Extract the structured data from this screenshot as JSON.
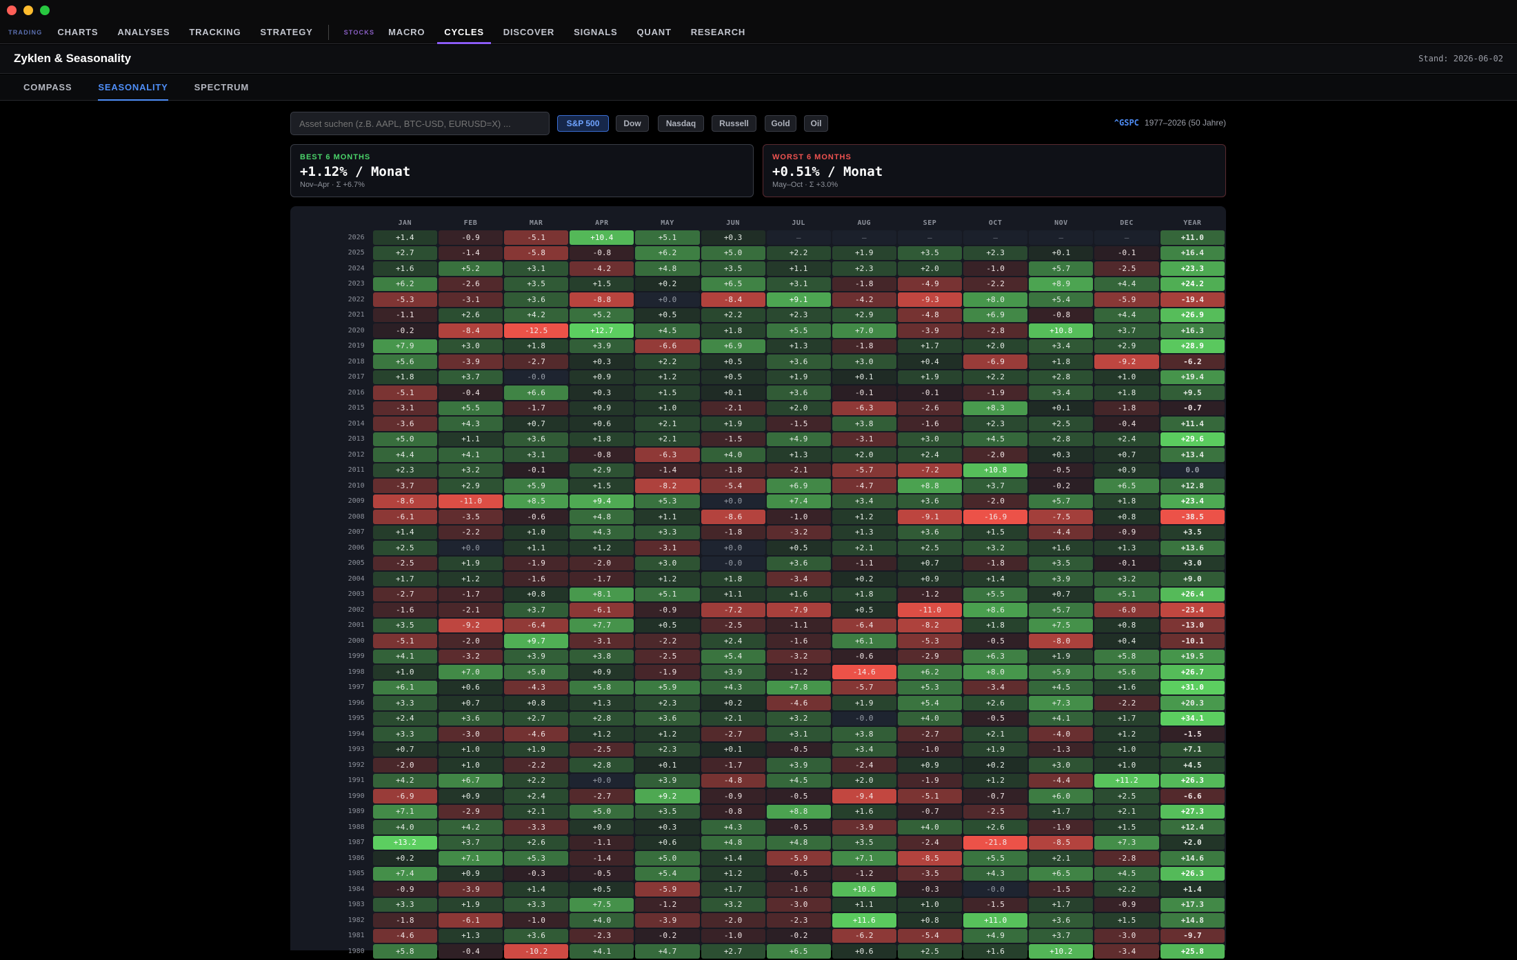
{
  "window": {
    "title": "Zyklen & Seasonality"
  },
  "nav": {
    "group_trading": "TRADING",
    "trading_items": [
      "CHARTS",
      "ANALYSES",
      "TRACKING",
      "STRATEGY"
    ],
    "group_stocks": "STOCKS",
    "stocks_items": [
      "MACRO",
      "CYCLES",
      "DISCOVER",
      "SIGNALS",
      "QUANT",
      "RESEARCH"
    ],
    "active": "CYCLES"
  },
  "header": {
    "title": "Zyklen & Seasonality",
    "stand": "Stand: 2026-06-02"
  },
  "subtabs": {
    "items": [
      "COMPASS",
      "SEASONALITY",
      "SPECTRUM"
    ],
    "active": "SEASONALITY"
  },
  "search": {
    "placeholder": "Asset suchen (z.B. AAPL, BTC-USD, EURUSD=X) ..."
  },
  "chips": {
    "items": [
      "S&P 500",
      "Dow",
      "Nasdaq",
      "Russell",
      "Gold",
      "Oil"
    ],
    "active": "S&P 500"
  },
  "ticker": {
    "symbol": "^GSPC",
    "range": "1977–2026 (50 Jahre)"
  },
  "best": {
    "label": "BEST 6 MONTHS",
    "value": "+1.12% / Monat",
    "sub": "Nov–Apr · Σ +6.7%"
  },
  "worst": {
    "label": "WORST 6 MONTHS",
    "value": "+0.51% / Monat",
    "sub": "May–Oct · Σ +3.0%"
  },
  "colors": {
    "positive": "#4caf50",
    "negative": "#e53935",
    "neutral": "#1e2430",
    "accent": "#4f8ef7",
    "nav_active": "#8b5cf6"
  },
  "table": {
    "columns": [
      "JAN",
      "FEB",
      "MAR",
      "APR",
      "MAY",
      "JUN",
      "JUL",
      "AUG",
      "SEP",
      "OCT",
      "NOV",
      "DEC",
      "YEAR"
    ],
    "rows": [
      {
        "year": "2026",
        "v": [
          "+1.4",
          "-0.9",
          "-5.1",
          "+10.4",
          "+5.1",
          "+0.3",
          "—",
          "—",
          "—",
          "—",
          "—",
          "—",
          "+11.0"
        ]
      },
      {
        "year": "2025",
        "v": [
          "+2.7",
          "-1.4",
          "-5.8",
          "-0.8",
          "+6.2",
          "+5.0",
          "+2.2",
          "+1.9",
          "+3.5",
          "+2.3",
          "+0.1",
          "-0.1",
          "+16.4"
        ]
      },
      {
        "year": "2024",
        "v": [
          "+1.6",
          "+5.2",
          "+3.1",
          "-4.2",
          "+4.8",
          "+3.5",
          "+1.1",
          "+2.3",
          "+2.0",
          "-1.0",
          "+5.7",
          "-2.5",
          "+23.3"
        ]
      },
      {
        "year": "2023",
        "v": [
          "+6.2",
          "-2.6",
          "+3.5",
          "+1.5",
          "+0.2",
          "+6.5",
          "+3.1",
          "-1.8",
          "-4.9",
          "-2.2",
          "+8.9",
          "+4.4",
          "+24.2"
        ]
      },
      {
        "year": "2022",
        "v": [
          "-5.3",
          "-3.1",
          "+3.6",
          "-8.8",
          "+0.0",
          "-8.4",
          "+9.1",
          "-4.2",
          "-9.3",
          "+8.0",
          "+5.4",
          "-5.9",
          "-19.4"
        ]
      },
      {
        "year": "2021",
        "v": [
          "-1.1",
          "+2.6",
          "+4.2",
          "+5.2",
          "+0.5",
          "+2.2",
          "+2.3",
          "+2.9",
          "-4.8",
          "+6.9",
          "-0.8",
          "+4.4",
          "+26.9"
        ]
      },
      {
        "year": "2020",
        "v": [
          "-0.2",
          "-8.4",
          "-12.5",
          "+12.7",
          "+4.5",
          "+1.8",
          "+5.5",
          "+7.0",
          "-3.9",
          "-2.8",
          "+10.8",
          "+3.7",
          "+16.3"
        ]
      },
      {
        "year": "2019",
        "v": [
          "+7.9",
          "+3.0",
          "+1.8",
          "+3.9",
          "-6.6",
          "+6.9",
          "+1.3",
          "-1.8",
          "+1.7",
          "+2.0",
          "+3.4",
          "+2.9",
          "+28.9"
        ]
      },
      {
        "year": "2018",
        "v": [
          "+5.6",
          "-3.9",
          "-2.7",
          "+0.3",
          "+2.2",
          "+0.5",
          "+3.6",
          "+3.0",
          "+0.4",
          "-6.9",
          "+1.8",
          "-9.2",
          "-6.2"
        ]
      },
      {
        "year": "2017",
        "v": [
          "+1.8",
          "+3.7",
          "-0.0",
          "+0.9",
          "+1.2",
          "+0.5",
          "+1.9",
          "+0.1",
          "+1.9",
          "+2.2",
          "+2.8",
          "+1.0",
          "+19.4"
        ]
      },
      {
        "year": "2016",
        "v": [
          "-5.1",
          "-0.4",
          "+6.6",
          "+0.3",
          "+1.5",
          "+0.1",
          "+3.6",
          "-0.1",
          "-0.1",
          "-1.9",
          "+3.4",
          "+1.8",
          "+9.5"
        ]
      },
      {
        "year": "2015",
        "v": [
          "-3.1",
          "+5.5",
          "-1.7",
          "+0.9",
          "+1.0",
          "-2.1",
          "+2.0",
          "-6.3",
          "-2.6",
          "+8.3",
          "+0.1",
          "-1.8",
          "-0.7"
        ]
      },
      {
        "year": "2014",
        "v": [
          "-3.6",
          "+4.3",
          "+0.7",
          "+0.6",
          "+2.1",
          "+1.9",
          "-1.5",
          "+3.8",
          "-1.6",
          "+2.3",
          "+2.5",
          "-0.4",
          "+11.4"
        ]
      },
      {
        "year": "2013",
        "v": [
          "+5.0",
          "+1.1",
          "+3.6",
          "+1.8",
          "+2.1",
          "-1.5",
          "+4.9",
          "-3.1",
          "+3.0",
          "+4.5",
          "+2.8",
          "+2.4",
          "+29.6"
        ]
      },
      {
        "year": "2012",
        "v": [
          "+4.4",
          "+4.1",
          "+3.1",
          "-0.8",
          "-6.3",
          "+4.0",
          "+1.3",
          "+2.0",
          "+2.4",
          "-2.0",
          "+0.3",
          "+0.7",
          "+13.4"
        ]
      },
      {
        "year": "2011",
        "v": [
          "+2.3",
          "+3.2",
          "-0.1",
          "+2.9",
          "-1.4",
          "-1.8",
          "-2.1",
          "-5.7",
          "-7.2",
          "+10.8",
          "-0.5",
          "+0.9",
          "0.0"
        ]
      },
      {
        "year": "2010",
        "v": [
          "-3.7",
          "+2.9",
          "+5.9",
          "+1.5",
          "-8.2",
          "-5.4",
          "+6.9",
          "-4.7",
          "+8.8",
          "+3.7",
          "-0.2",
          "+6.5",
          "+12.8"
        ]
      },
      {
        "year": "2009",
        "v": [
          "-8.6",
          "-11.0",
          "+8.5",
          "+9.4",
          "+5.3",
          "+0.0",
          "+7.4",
          "+3.4",
          "+3.6",
          "-2.0",
          "+5.7",
          "+1.8",
          "+23.4"
        ]
      },
      {
        "year": "2008",
        "v": [
          "-6.1",
          "-3.5",
          "-0.6",
          "+4.8",
          "+1.1",
          "-8.6",
          "-1.0",
          "+1.2",
          "-9.1",
          "-16.9",
          "-7.5",
          "+0.8",
          "-38.5"
        ]
      },
      {
        "year": "2007",
        "v": [
          "+1.4",
          "-2.2",
          "+1.0",
          "+4.3",
          "+3.3",
          "-1.8",
          "-3.2",
          "+1.3",
          "+3.6",
          "+1.5",
          "-4.4",
          "-0.9",
          "+3.5"
        ]
      },
      {
        "year": "2006",
        "v": [
          "+2.5",
          "+0.0",
          "+1.1",
          "+1.2",
          "-3.1",
          "+0.0",
          "+0.5",
          "+2.1",
          "+2.5",
          "+3.2",
          "+1.6",
          "+1.3",
          "+13.6"
        ]
      },
      {
        "year": "2005",
        "v": [
          "-2.5",
          "+1.9",
          "-1.9",
          "-2.0",
          "+3.0",
          "-0.0",
          "+3.6",
          "-1.1",
          "+0.7",
          "-1.8",
          "+3.5",
          "-0.1",
          "+3.0"
        ]
      },
      {
        "year": "2004",
        "v": [
          "+1.7",
          "+1.2",
          "-1.6",
          "-1.7",
          "+1.2",
          "+1.8",
          "-3.4",
          "+0.2",
          "+0.9",
          "+1.4",
          "+3.9",
          "+3.2",
          "+9.0"
        ]
      },
      {
        "year": "2003",
        "v": [
          "-2.7",
          "-1.7",
          "+0.8",
          "+8.1",
          "+5.1",
          "+1.1",
          "+1.6",
          "+1.8",
          "-1.2",
          "+5.5",
          "+0.7",
          "+5.1",
          "+26.4"
        ]
      },
      {
        "year": "2002",
        "v": [
          "-1.6",
          "-2.1",
          "+3.7",
          "-6.1",
          "-0.9",
          "-7.2",
          "-7.9",
          "+0.5",
          "-11.0",
          "+8.6",
          "+5.7",
          "-6.0",
          "-23.4"
        ]
      },
      {
        "year": "2001",
        "v": [
          "+3.5",
          "-9.2",
          "-6.4",
          "+7.7",
          "+0.5",
          "-2.5",
          "-1.1",
          "-6.4",
          "-8.2",
          "+1.8",
          "+7.5",
          "+0.8",
          "-13.0"
        ]
      },
      {
        "year": "2000",
        "v": [
          "-5.1",
          "-2.0",
          "+9.7",
          "-3.1",
          "-2.2",
          "+2.4",
          "-1.6",
          "+6.1",
          "-5.3",
          "-0.5",
          "-8.0",
          "+0.4",
          "-10.1"
        ]
      },
      {
        "year": "1999",
        "v": [
          "+4.1",
          "-3.2",
          "+3.9",
          "+3.8",
          "-2.5",
          "+5.4",
          "-3.2",
          "-0.6",
          "-2.9",
          "+6.3",
          "+1.9",
          "+5.8",
          "+19.5"
        ]
      },
      {
        "year": "1998",
        "v": [
          "+1.0",
          "+7.0",
          "+5.0",
          "+0.9",
          "-1.9",
          "+3.9",
          "-1.2",
          "-14.6",
          "+6.2",
          "+8.0",
          "+5.9",
          "+5.6",
          "+26.7"
        ]
      },
      {
        "year": "1997",
        "v": [
          "+6.1",
          "+0.6",
          "-4.3",
          "+5.8",
          "+5.9",
          "+4.3",
          "+7.8",
          "-5.7",
          "+5.3",
          "-3.4",
          "+4.5",
          "+1.6",
          "+31.0"
        ]
      },
      {
        "year": "1996",
        "v": [
          "+3.3",
          "+0.7",
          "+0.8",
          "+1.3",
          "+2.3",
          "+0.2",
          "-4.6",
          "+1.9",
          "+5.4",
          "+2.6",
          "+7.3",
          "-2.2",
          "+20.3"
        ]
      },
      {
        "year": "1995",
        "v": [
          "+2.4",
          "+3.6",
          "+2.7",
          "+2.8",
          "+3.6",
          "+2.1",
          "+3.2",
          "-0.0",
          "+4.0",
          "-0.5",
          "+4.1",
          "+1.7",
          "+34.1"
        ]
      },
      {
        "year": "1994",
        "v": [
          "+3.3",
          "-3.0",
          "-4.6",
          "+1.2",
          "+1.2",
          "-2.7",
          "+3.1",
          "+3.8",
          "-2.7",
          "+2.1",
          "-4.0",
          "+1.2",
          "-1.5"
        ]
      },
      {
        "year": "1993",
        "v": [
          "+0.7",
          "+1.0",
          "+1.9",
          "-2.5",
          "+2.3",
          "+0.1",
          "-0.5",
          "+3.4",
          "-1.0",
          "+1.9",
          "-1.3",
          "+1.0",
          "+7.1"
        ]
      },
      {
        "year": "1992",
        "v": [
          "-2.0",
          "+1.0",
          "-2.2",
          "+2.8",
          "+0.1",
          "-1.7",
          "+3.9",
          "-2.4",
          "+0.9",
          "+0.2",
          "+3.0",
          "+1.0",
          "+4.5"
        ]
      },
      {
        "year": "1991",
        "v": [
          "+4.2",
          "+6.7",
          "+2.2",
          "+0.0",
          "+3.9",
          "-4.8",
          "+4.5",
          "+2.0",
          "-1.9",
          "+1.2",
          "-4.4",
          "+11.2",
          "+26.3"
        ]
      },
      {
        "year": "1990",
        "v": [
          "-6.9",
          "+0.9",
          "+2.4",
          "-2.7",
          "+9.2",
          "-0.9",
          "-0.5",
          "-9.4",
          "-5.1",
          "-0.7",
          "+6.0",
          "+2.5",
          "-6.6"
        ]
      },
      {
        "year": "1989",
        "v": [
          "+7.1",
          "-2.9",
          "+2.1",
          "+5.0",
          "+3.5",
          "-0.8",
          "+8.8",
          "+1.6",
          "-0.7",
          "-2.5",
          "+1.7",
          "+2.1",
          "+27.3"
        ]
      },
      {
        "year": "1988",
        "v": [
          "+4.0",
          "+4.2",
          "-3.3",
          "+0.9",
          "+0.3",
          "+4.3",
          "-0.5",
          "-3.9",
          "+4.0",
          "+2.6",
          "-1.9",
          "+1.5",
          "+12.4"
        ]
      },
      {
        "year": "1987",
        "v": [
          "+13.2",
          "+3.7",
          "+2.6",
          "-1.1",
          "+0.6",
          "+4.8",
          "+4.8",
          "+3.5",
          "-2.4",
          "-21.8",
          "-8.5",
          "+7.3",
          "+2.0"
        ]
      },
      {
        "year": "1986",
        "v": [
          "+0.2",
          "+7.1",
          "+5.3",
          "-1.4",
          "+5.0",
          "+1.4",
          "-5.9",
          "+7.1",
          "-8.5",
          "+5.5",
          "+2.1",
          "-2.8",
          "+14.6"
        ]
      },
      {
        "year": "1985",
        "v": [
          "+7.4",
          "+0.9",
          "-0.3",
          "-0.5",
          "+5.4",
          "+1.2",
          "-0.5",
          "-1.2",
          "-3.5",
          "+4.3",
          "+6.5",
          "+4.5",
          "+26.3"
        ]
      },
      {
        "year": "1984",
        "v": [
          "-0.9",
          "-3.9",
          "+1.4",
          "+0.5",
          "-5.9",
          "+1.7",
          "-1.6",
          "+10.6",
          "-0.3",
          "-0.0",
          "-1.5",
          "+2.2",
          "+1.4"
        ]
      },
      {
        "year": "1983",
        "v": [
          "+3.3",
          "+1.9",
          "+3.3",
          "+7.5",
          "-1.2",
          "+3.2",
          "-3.0",
          "+1.1",
          "+1.0",
          "-1.5",
          "+1.7",
          "-0.9",
          "+17.3"
        ]
      },
      {
        "year": "1982",
        "v": [
          "-1.8",
          "-6.1",
          "-1.0",
          "+4.0",
          "-3.9",
          "-2.0",
          "-2.3",
          "+11.6",
          "+0.8",
          "+11.0",
          "+3.6",
          "+1.5",
          "+14.8"
        ]
      },
      {
        "year": "1981",
        "v": [
          "-4.6",
          "+1.3",
          "+3.6",
          "-2.3",
          "-0.2",
          "-1.0",
          "-0.2",
          "-6.2",
          "-5.4",
          "+4.9",
          "+3.7",
          "-3.0",
          "-9.7"
        ]
      },
      {
        "year": "1980",
        "v": [
          "+5.8",
          "-0.4",
          "-10.2",
          "+4.1",
          "+4.7",
          "+2.7",
          "+6.5",
          "+0.6",
          "+2.5",
          "+1.6",
          "+10.2",
          "-3.4",
          "+25.8"
        ]
      }
    ]
  }
}
